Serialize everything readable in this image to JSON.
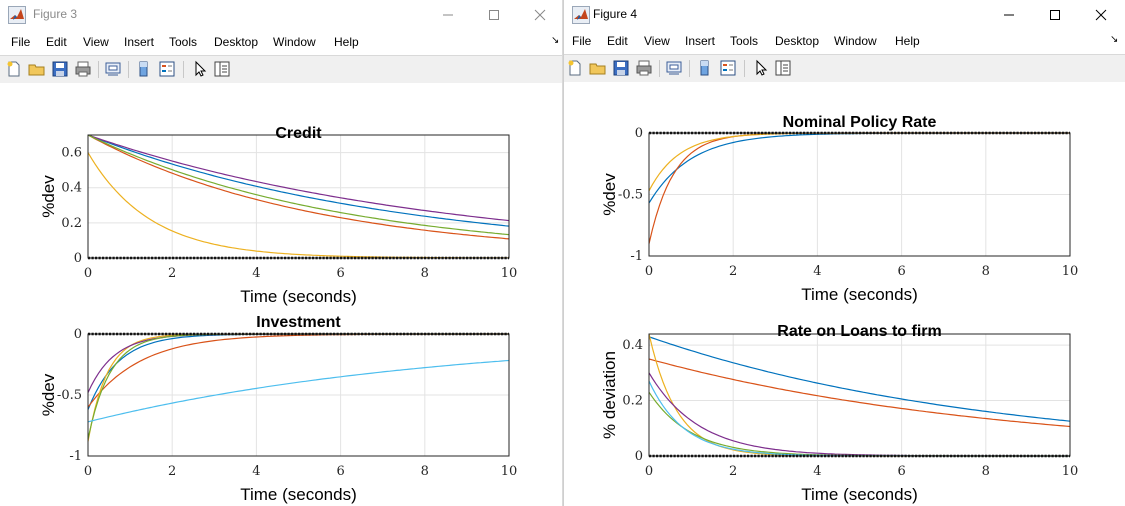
{
  "menu": [
    "File",
    "Edit",
    "View",
    "Insert",
    "Tools",
    "Desktop",
    "Window",
    "Help"
  ],
  "colors": [
    "#0072BD",
    "#D95319",
    "#EDB120",
    "#7E2F8E",
    "#77AC30",
    "#4DBEEE"
  ],
  "windows": [
    {
      "title": "Figure 3",
      "active": false,
      "axes": [
        {
          "title": "Credit",
          "xlabel": "Time (seconds)",
          "ylabel": "%dev",
          "xlim": [
            0,
            10
          ],
          "ylim": [
            0,
            0.7
          ],
          "xticks": [
            "0",
            "2",
            "4",
            "6",
            "8",
            "10"
          ],
          "yticks": [
            {
              "v": 0,
              "t": "0"
            },
            {
              "v": 0.2,
              "t": "0.2"
            },
            {
              "v": 0.4,
              "t": "0.4"
            },
            {
              "v": 0.6,
              "t": "0.6"
            }
          ],
          "series": [
            {
              "c": 0,
              "a": 0.7,
              "k": 0.135
            },
            {
              "c": 1,
              "a": 0.7,
              "k": 0.186
            },
            {
              "c": 2,
              "a": 0.6,
              "k": 0.68
            },
            {
              "c": 3,
              "a": 0.7,
              "k": 0.119
            },
            {
              "c": 4,
              "a": 0.7,
              "k": 0.166
            }
          ],
          "zero_markers": true
        },
        {
          "title": "Investment",
          "xlabel": "Time (seconds)",
          "ylabel": "%dev",
          "xlim": [
            0,
            10
          ],
          "ylim": [
            -1,
            0
          ],
          "xticks": [
            "0",
            "2",
            "4",
            "6",
            "8",
            "10"
          ],
          "yticks": [
            {
              "v": -1,
              "t": "-1"
            },
            {
              "v": -0.5,
              "t": "-0.5"
            },
            {
              "v": 0,
              "t": "0"
            }
          ],
          "series": [
            {
              "c": 0,
              "a": -0.62,
              "k": 1.4
            },
            {
              "c": 1,
              "a": -0.6,
              "k": 0.8
            },
            {
              "c": 2,
              "a": -0.88,
              "k": 2.2
            },
            {
              "c": 3,
              "a": -0.48,
              "k": 1.6
            },
            {
              "c": 4,
              "a": -0.86,
              "k": 1.9
            },
            {
              "c": 5,
              "a": -0.72,
              "k": 0.12
            }
          ],
          "zero_markers": true
        }
      ]
    },
    {
      "title": "Figure 4",
      "active": true,
      "axes": [
        {
          "title": "Nominal Policy Rate",
          "xlabel": "Time (seconds)",
          "ylabel": "%dev",
          "xlim": [
            0,
            10
          ],
          "ylim": [
            -1,
            0
          ],
          "xticks": [
            "0",
            "2",
            "4",
            "6",
            "8",
            "10"
          ],
          "yticks": [
            {
              "v": -1,
              "t": "-1"
            },
            {
              "v": -0.5,
              "t": "-0.5"
            },
            {
              "v": 0,
              "t": "0"
            }
          ],
          "series": [
            {
              "c": 0,
              "a": -0.57,
              "k": 1.0
            },
            {
              "c": 1,
              "a": -0.9,
              "k": 1.7
            },
            {
              "c": 2,
              "a": -0.47,
              "k": 1.4
            }
          ],
          "zero_markers": true
        },
        {
          "title": "Rate on Loans to firm",
          "xlabel": "Time (seconds)",
          "ylabel": "% deviation",
          "xlim": [
            0,
            10
          ],
          "ylim": [
            0,
            0.44
          ],
          "xticks": [
            "0",
            "2",
            "4",
            "6",
            "8",
            "10"
          ],
          "yticks": [
            {
              "v": 0,
              "t": "0"
            },
            {
              "v": 0.2,
              "t": "0.2"
            },
            {
              "v": 0.4,
              "t": "0.4"
            }
          ],
          "series": [
            {
              "c": 0,
              "a": 0.43,
              "k": 0.123
            },
            {
              "c": 1,
              "a": 0.35,
              "k": 0.119
            },
            {
              "c": 2,
              "a": 0.44,
              "k": 1.5
            },
            {
              "c": 3,
              "a": 0.3,
              "k": 0.85
            },
            {
              "c": 4,
              "a": 0.23,
              "k": 1.0
            },
            {
              "c": 5,
              "a": 0.27,
              "k": 1.2
            }
          ],
          "zero_markers": true
        }
      ]
    }
  ],
  "chart_data": [
    {
      "type": "line",
      "title": "Credit",
      "xlabel": "Time (seconds)",
      "ylabel": "%dev",
      "xlim": [
        0,
        10
      ],
      "ylim": [
        0,
        0.7
      ],
      "series": [
        {
          "start": 0.7,
          "end": 0.18
        },
        {
          "start": 0.7,
          "end": 0.11
        },
        {
          "start": 0.6,
          "end": 0.0
        },
        {
          "start": 0.7,
          "end": 0.21
        },
        {
          "start": 0.7,
          "end": 0.13
        }
      ]
    },
    {
      "type": "line",
      "title": "Investment",
      "xlabel": "Time (seconds)",
      "ylabel": "%dev",
      "xlim": [
        0,
        10
      ],
      "ylim": [
        -1,
        0
      ],
      "series": [
        {
          "start": -0.62,
          "end": 0.0
        },
        {
          "start": -0.6,
          "end": 0.0
        },
        {
          "start": -0.88,
          "end": 0.0
        },
        {
          "start": -0.48,
          "end": 0.0
        },
        {
          "start": -0.86,
          "end": 0.0
        },
        {
          "start": -0.72,
          "end": -0.21
        }
      ]
    },
    {
      "type": "line",
      "title": "Nominal Policy Rate",
      "xlabel": "Time (seconds)",
      "ylabel": "%dev",
      "xlim": [
        0,
        10
      ],
      "ylim": [
        -1,
        0
      ],
      "series": [
        {
          "start": -0.57,
          "end": 0.0
        },
        {
          "start": -0.9,
          "end": 0.0
        },
        {
          "start": -0.47,
          "end": 0.0
        }
      ]
    },
    {
      "type": "line",
      "title": "Rate on Loans to firm",
      "xlabel": "Time (seconds)",
      "ylabel": "% deviation",
      "xlim": [
        0,
        10
      ],
      "ylim": [
        0,
        0.44
      ],
      "series": [
        {
          "start": 0.43,
          "end": 0.125
        },
        {
          "start": 0.35,
          "end": 0.106
        },
        {
          "start": 0.44,
          "end": 0.0
        },
        {
          "start": 0.3,
          "end": 0.0
        },
        {
          "start": 0.23,
          "end": 0.0
        },
        {
          "start": 0.27,
          "end": 0.0
        }
      ]
    }
  ]
}
